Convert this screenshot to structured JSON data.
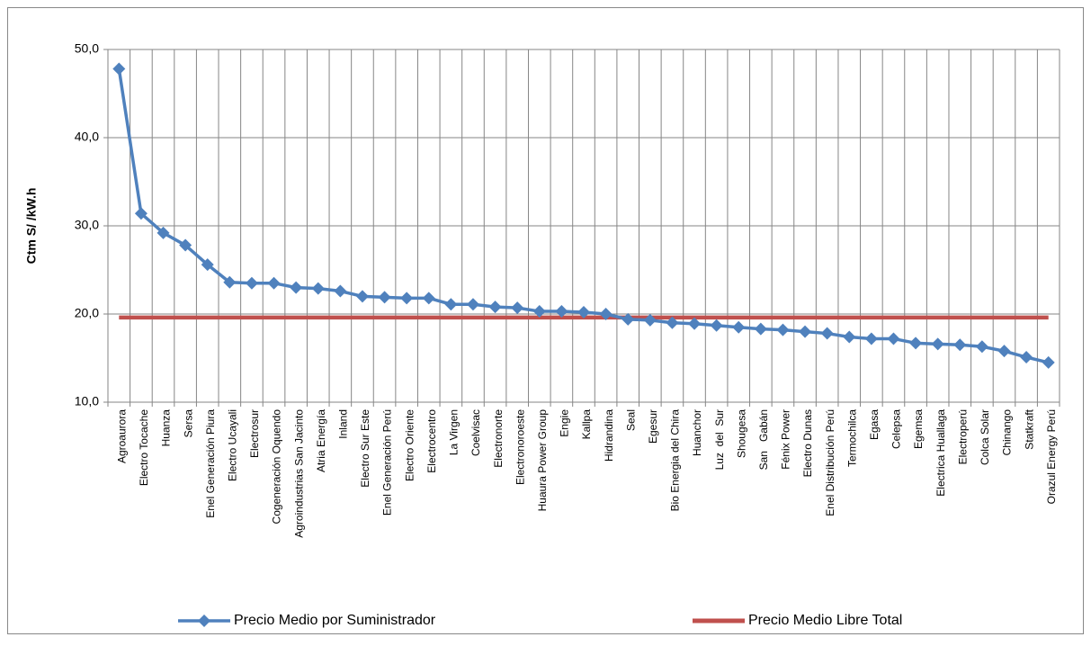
{
  "chart_data": {
    "type": "line",
    "y_label": "Ctm S/ /kW.h",
    "categories": [
      "Agroaurora",
      "Electro Tocache",
      "Huanza",
      "Sersa",
      "Enel Generación Piura",
      "Electro Ucayali",
      "Electrosur",
      "Cogeneración Oquendo",
      "Agroindustrias San Jacinto",
      "Atria Energía",
      "Inland",
      "Electro Sur Este",
      "Enel Generación Perú",
      "Electro Oriente",
      "Electrocentro",
      "La Virgen",
      "Coelvisac",
      "Electronorte",
      "Electronoroeste",
      "Huaura Power Group",
      "Engie",
      "Kallpa",
      "Hidrandina",
      "Seal",
      "Egesur",
      "Bio Energia del Chira",
      "Huanchor",
      "Luz  del  Sur",
      "Shougesa",
      "San   Gabán",
      "Fénix Power",
      "Electro Dunas",
      "Enel Distribución Perú",
      "Termochilca",
      "Egasa",
      "Celepsa",
      "Egemsa",
      "Electrica Huallaga",
      "Electroperú",
      "Colca Solar",
      "Chinango",
      "Statkraft",
      "Orazul Energy Perú"
    ],
    "series": [
      {
        "name": "Precio Medio por Suministrador",
        "color": "#4f81bd",
        "marker": "diamond",
        "values": [
          47.8,
          31.4,
          29.2,
          27.8,
          25.6,
          23.6,
          23.5,
          23.5,
          23.0,
          22.9,
          22.6,
          22.0,
          21.9,
          21.8,
          21.8,
          21.1,
          21.1,
          20.8,
          20.7,
          20.3,
          20.3,
          20.2,
          20.0,
          19.4,
          19.3,
          19.0,
          18.9,
          18.7,
          18.5,
          18.3,
          18.2,
          18.0,
          17.8,
          17.4,
          17.2,
          17.2,
          16.7,
          16.6,
          16.5,
          16.3,
          15.8,
          15.1,
          14.5
        ]
      },
      {
        "name": "Precio Medio Libre Total",
        "color": "#c0504d",
        "values": [
          19.6,
          19.6,
          19.6,
          19.6,
          19.6,
          19.6,
          19.6,
          19.6,
          19.6,
          19.6,
          19.6,
          19.6,
          19.6,
          19.6,
          19.6,
          19.6,
          19.6,
          19.6,
          19.6,
          19.6,
          19.6,
          19.6,
          19.6,
          19.6,
          19.6,
          19.6,
          19.6,
          19.6,
          19.6,
          19.6,
          19.6,
          19.6,
          19.6,
          19.6,
          19.6,
          19.6,
          19.6,
          19.6,
          19.6,
          19.6,
          19.6,
          19.6,
          19.6
        ]
      }
    ],
    "ylim": [
      10,
      50
    ],
    "yticks": [
      {
        "value": 10,
        "label": "10,0"
      },
      {
        "value": 20,
        "label": "20,0"
      },
      {
        "value": 30,
        "label": "30,0"
      },
      {
        "value": 40,
        "label": "40,0"
      },
      {
        "value": 50,
        "label": "50,0"
      }
    ],
    "grid": true
  }
}
